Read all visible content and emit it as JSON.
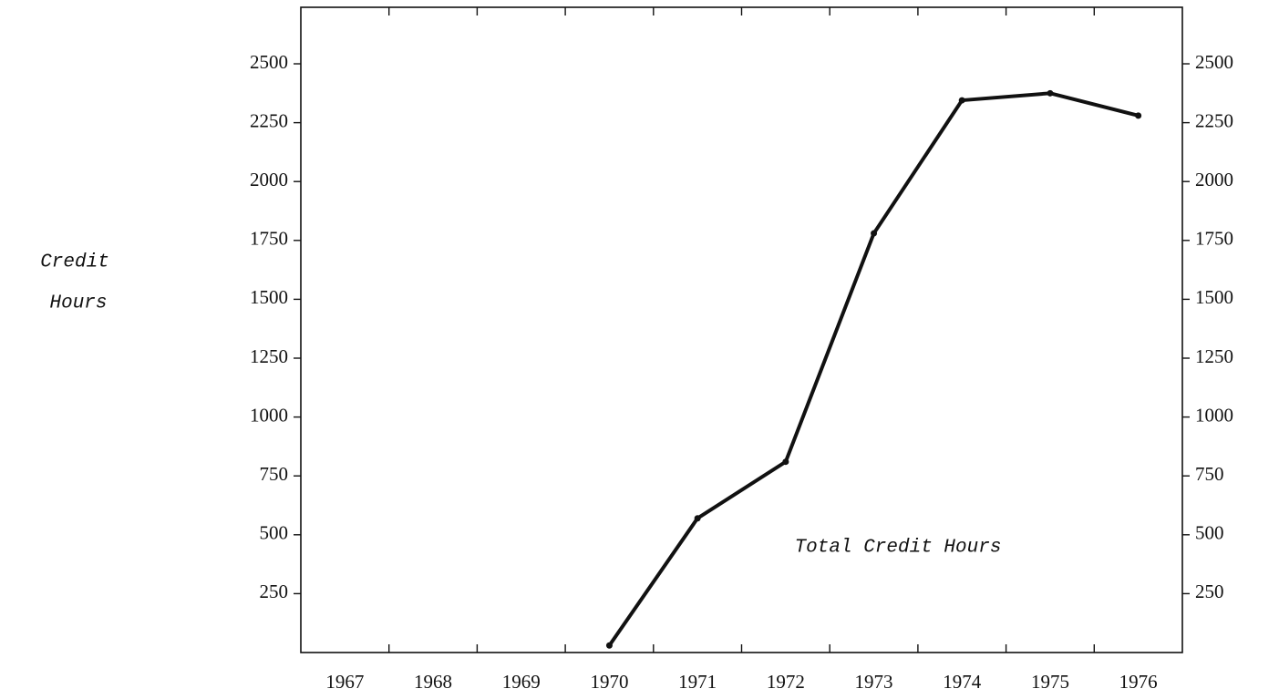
{
  "chart_data": {
    "type": "line",
    "y_label": [
      "Credit",
      "Hours"
    ],
    "annotation": "Total Credit Hours",
    "categories": [
      "1967",
      "1968",
      "1969",
      "1970",
      "1971",
      "1972",
      "1973",
      "1974",
      "1975",
      "1976"
    ],
    "series": [
      {
        "name": "Total Credit Hours",
        "color": "#111111",
        "values": [
          null,
          null,
          null,
          30,
          570,
          810,
          1780,
          2345,
          2375,
          2280
        ]
      }
    ],
    "ylim": [
      0,
      2740
    ],
    "yticks": [
      250,
      500,
      750,
      1000,
      1250,
      1500,
      1750,
      2000,
      2250,
      2500
    ],
    "y2lim": [
      0,
      2740
    ],
    "y2ticks": [
      250,
      500,
      750,
      1000,
      1250,
      1500,
      1750,
      2000,
      2250,
      2500
    ],
    "grid": false
  }
}
